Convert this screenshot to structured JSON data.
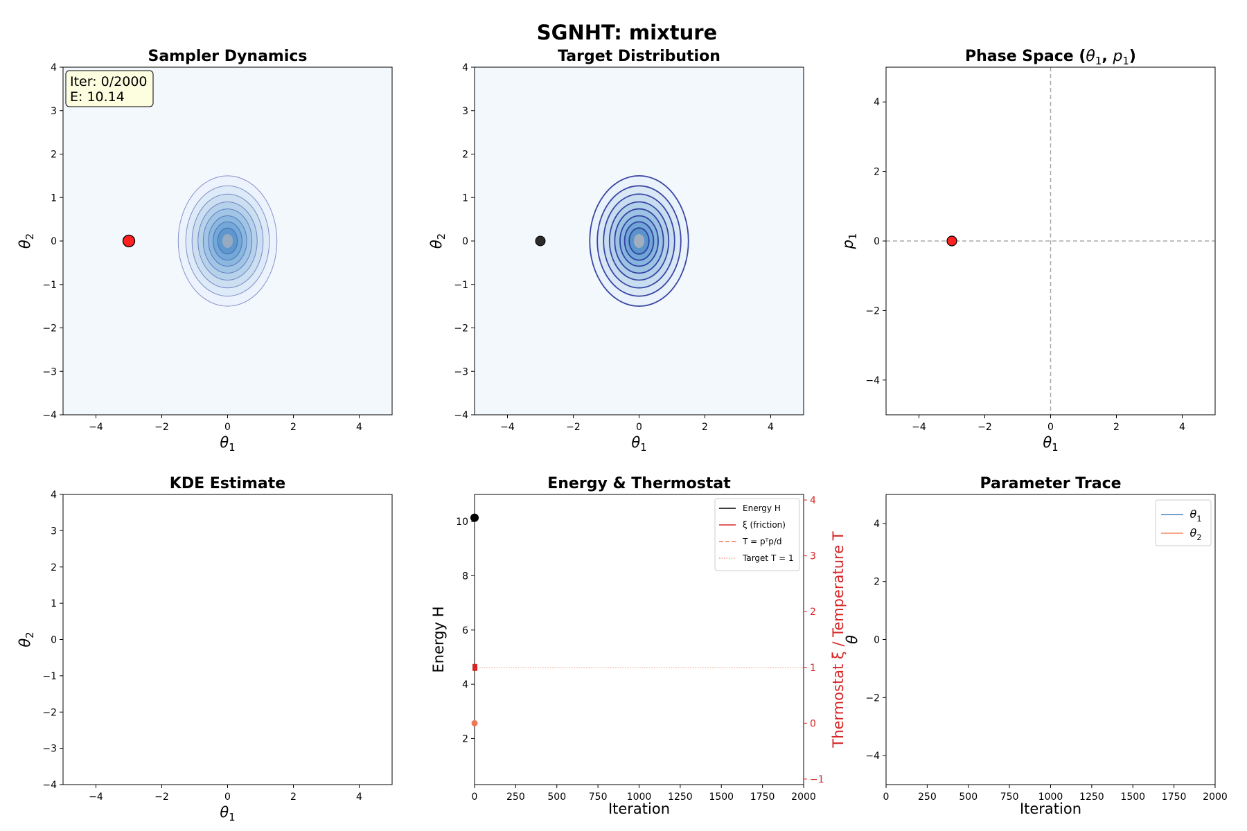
{
  "suptitle": "SGNHT: mixture",
  "colors": {
    "sampler": "#ff2020",
    "target_point": "#2b2b2b",
    "heat_bg": "#f3f8fd",
    "contour_dark": "#2f3d9f",
    "theta1_line": "#4a7fc1",
    "theta2_line": "#f08a60",
    "friction": "#d62728",
    "temperature": "#ee7755",
    "target_T": "#f5a080"
  },
  "chart_data": [
    {
      "id": "sampler",
      "type": "contour",
      "title": "Sampler Dynamics",
      "xlabel": "θ1",
      "ylabel": "θ2",
      "xlim": [
        -5,
        5
      ],
      "ylim": [
        -4,
        4
      ],
      "xticks": [
        "−4",
        "−2",
        "0",
        "2",
        "4"
      ],
      "yticks": [
        "−4",
        "−3",
        "−2",
        "−1",
        "0",
        "1",
        "2",
        "3",
        "4"
      ],
      "gaussian_center": [
        0,
        0
      ],
      "gaussian_sigma": [
        0.5,
        0.5
      ],
      "point": [
        -3,
        0
      ],
      "info_lines": [
        "Iter: 0/2000",
        "E: 10.14"
      ]
    },
    {
      "id": "target",
      "type": "contour",
      "title": "Target Distribution",
      "xlabel": "θ1",
      "ylabel": "θ2",
      "xlim": [
        -5,
        5
      ],
      "ylim": [
        -4,
        4
      ],
      "xticks": [
        "−4",
        "−2",
        "0",
        "2",
        "4"
      ],
      "yticks": [
        "−4",
        "−3",
        "−2",
        "−1",
        "0",
        "1",
        "2",
        "3",
        "4"
      ],
      "gaussian_center": [
        0,
        0
      ],
      "point": [
        -3,
        0
      ]
    },
    {
      "id": "phase",
      "type": "scatter",
      "title": "Phase Space (θ1, p1)",
      "title_parts": [
        "Phase Space (",
        "θ",
        "1",
        ", ",
        "p",
        "1",
        ")"
      ],
      "xlabel": "θ1",
      "ylabel": "p1",
      "xlim": [
        -5,
        5
      ],
      "ylim": [
        -5,
        5
      ],
      "xticks": [
        "−4",
        "−2",
        "0",
        "2",
        "4"
      ],
      "yticks": [
        "−4",
        "−2",
        "0",
        "2",
        "4"
      ],
      "point": [
        -3,
        0
      ]
    },
    {
      "id": "kde",
      "type": "heatmap",
      "title": "KDE Estimate",
      "xlabel": "θ1",
      "ylabel": "θ2",
      "xlim": [
        -5,
        5
      ],
      "ylim": [
        -4,
        4
      ],
      "xticks": [
        "−4",
        "−2",
        "0",
        "2",
        "4"
      ],
      "yticks": [
        "−4",
        "−3",
        "−2",
        "−1",
        "0",
        "1",
        "2",
        "3",
        "4"
      ]
    },
    {
      "id": "energy",
      "type": "line",
      "title": "Energy & Thermostat",
      "xlabel": "Iteration",
      "ylabel": "Energy H",
      "ylabel_right": "Thermostat ξ / Temperature T",
      "xlim": [
        0,
        2000
      ],
      "ylim": [
        0.3,
        11
      ],
      "ylim_right": [
        -1.1,
        4.1
      ],
      "xticks": [
        "0",
        "250",
        "500",
        "750",
        "1000",
        "1250",
        "1500",
        "1750",
        "2000"
      ],
      "yticks": [
        "2",
        "4",
        "6",
        "8",
        "10"
      ],
      "yticks_right": [
        "−1",
        "0",
        "1",
        "2",
        "3",
        "4"
      ],
      "series": [
        {
          "name": "Energy H",
          "x": [
            0
          ],
          "values": [
            10.14
          ]
        },
        {
          "name": "ξ (friction)",
          "x": [
            0
          ],
          "values": [
            1.0
          ]
        },
        {
          "name": "T = pᵀp/d",
          "x": [
            0
          ],
          "values": [
            0.0
          ]
        },
        {
          "name": "Target T = 1",
          "x": [
            0,
            2000
          ],
          "values": [
            1,
            1
          ]
        }
      ],
      "legend": [
        "Energy H",
        "ξ (friction)",
        "T = pᵀp/d",
        "Target T = 1"
      ],
      "legend_loc": "top-right"
    },
    {
      "id": "trace",
      "type": "line",
      "title": "Parameter Trace",
      "xlabel": "Iteration",
      "ylabel": "θ",
      "xlim": [
        0,
        2000
      ],
      "ylim": [
        -5,
        5
      ],
      "xticks": [
        "0",
        "250",
        "500",
        "750",
        "1000",
        "1250",
        "1500",
        "1750",
        "2000"
      ],
      "yticks": [
        "−4",
        "−2",
        "0",
        "2",
        "4"
      ],
      "series": [
        {
          "name": "θ1",
          "x": [],
          "values": []
        },
        {
          "name": "θ2",
          "x": [],
          "values": []
        }
      ],
      "legend": [
        "θ1",
        "θ2"
      ],
      "legend_loc": "top-right"
    }
  ]
}
